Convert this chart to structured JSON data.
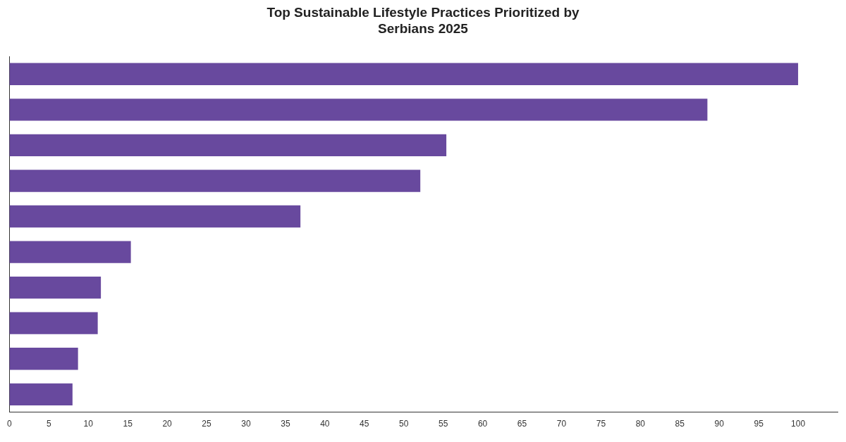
{
  "chart_data": {
    "type": "bar",
    "orientation": "horizontal",
    "title": "Top Sustainable Lifestyle Practices Prioritized by Serbians 2025",
    "categories": [
      null,
      null,
      null,
      null,
      null,
      null,
      null,
      null,
      null,
      null
    ],
    "values": [
      100,
      88.5,
      55.4,
      52.1,
      36.9,
      15.4,
      11.6,
      11.2,
      8.7,
      8.0
    ],
    "color": "#68499e",
    "xlim": [
      0,
      105
    ],
    "xticks": [
      0,
      5,
      10,
      15,
      20,
      25,
      30,
      35,
      40,
      45,
      50,
      55,
      60,
      65,
      70,
      75,
      80,
      85,
      90,
      95,
      100
    ],
    "grid": false,
    "legend": false,
    "tick_labels": "x"
  }
}
